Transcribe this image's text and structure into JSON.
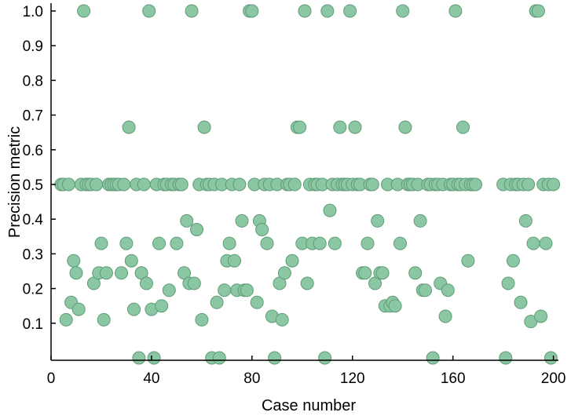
{
  "chart_data": {
    "type": "scatter",
    "title": "",
    "xlabel": "Case number",
    "ylabel": "Precision metric",
    "xlim": [
      0,
      202
    ],
    "ylim": [
      0,
      1.0
    ],
    "x_ticks": [
      0,
      40,
      80,
      120,
      160,
      200
    ],
    "y_ticks": [
      0.1,
      0.2,
      0.3,
      0.4,
      0.5,
      0.6,
      0.7,
      0.8,
      0.9,
      1.0
    ],
    "grid": false,
    "legend": "none",
    "marker_color": "#8cc7a3",
    "marker_edge_color": "#5f9c78",
    "series": [
      {
        "points": [
          [
            4,
            0.5
          ],
          [
            5,
            0.5
          ],
          [
            6,
            0.11
          ],
          [
            7,
            0.5
          ],
          [
            8,
            0.16
          ],
          [
            9,
            0.28
          ],
          [
            10,
            0.245
          ],
          [
            11,
            0.14
          ],
          [
            12,
            0.5
          ],
          [
            13,
            1.0
          ],
          [
            14,
            0.5
          ],
          [
            15,
            0.5
          ],
          [
            16,
            0.5
          ],
          [
            17,
            0.215
          ],
          [
            18,
            0.5
          ],
          [
            19,
            0.245
          ],
          [
            20,
            0.33
          ],
          [
            21,
            0.11
          ],
          [
            22,
            0.245
          ],
          [
            23,
            0.5
          ],
          [
            24,
            0.5
          ],
          [
            25,
            0.5
          ],
          [
            26,
            0.5
          ],
          [
            27,
            0.5
          ],
          [
            28,
            0.245
          ],
          [
            29,
            0.5
          ],
          [
            30,
            0.33
          ],
          [
            31,
            0.665
          ],
          [
            32,
            0.28
          ],
          [
            33,
            0.14
          ],
          [
            34,
            0.5
          ],
          [
            35,
            0.0
          ],
          [
            36,
            0.245
          ],
          [
            37,
            0.5
          ],
          [
            38,
            0.215
          ],
          [
            39,
            1.0
          ],
          [
            40,
            0.14
          ],
          [
            41,
            0.0
          ],
          [
            42,
            0.5
          ],
          [
            43,
            0.33
          ],
          [
            44,
            0.15
          ],
          [
            45,
            0.5
          ],
          [
            46,
            0.5
          ],
          [
            47,
            0.195
          ],
          [
            48,
            0.5
          ],
          [
            49,
            0.5
          ],
          [
            50,
            0.33
          ],
          [
            51,
            0.5
          ],
          [
            52,
            0.5
          ],
          [
            53,
            0.245
          ],
          [
            54,
            0.395
          ],
          [
            55,
            0.215
          ],
          [
            56,
            1.0
          ],
          [
            57,
            0.215
          ],
          [
            58,
            0.37
          ],
          [
            59,
            0.5
          ],
          [
            60,
            0.11
          ],
          [
            61,
            0.665
          ],
          [
            62,
            0.5
          ],
          [
            63,
            0.5
          ],
          [
            64,
            0.0
          ],
          [
            65,
            0.5
          ],
          [
            66,
            0.16
          ],
          [
            67,
            0.0
          ],
          [
            68,
            0.5
          ],
          [
            69,
            0.195
          ],
          [
            70,
            0.28
          ],
          [
            71,
            0.33
          ],
          [
            72,
            0.5
          ],
          [
            73,
            0.28
          ],
          [
            74,
            0.195
          ],
          [
            75,
            0.5
          ],
          [
            76,
            0.395
          ],
          [
            77,
            0.195
          ],
          [
            78,
            0.195
          ],
          [
            79,
            1.0
          ],
          [
            80,
            1.0
          ],
          [
            81,
            0.5
          ],
          [
            82,
            0.16
          ],
          [
            83,
            0.395
          ],
          [
            84,
            0.37
          ],
          [
            85,
            0.5
          ],
          [
            86,
            0.33
          ],
          [
            87,
            0.5
          ],
          [
            88,
            0.12
          ],
          [
            89,
            0.0
          ],
          [
            90,
            0.5
          ],
          [
            91,
            0.215
          ],
          [
            92,
            0.11
          ],
          [
            93,
            0.245
          ],
          [
            94,
            0.5
          ],
          [
            95,
            0.5
          ],
          [
            96,
            0.28
          ],
          [
            97,
            0.5
          ],
          [
            98,
            0.665
          ],
          [
            99,
            0.665
          ],
          [
            100,
            0.33
          ],
          [
            101,
            1.0
          ],
          [
            102,
            0.215
          ],
          [
            103,
            0.5
          ],
          [
            104,
            0.33
          ],
          [
            105,
            0.5
          ],
          [
            106,
            0.5
          ],
          [
            107,
            0.33
          ],
          [
            108,
            0.5
          ],
          [
            109,
            0.0
          ],
          [
            110,
            1.0
          ],
          [
            111,
            0.425
          ],
          [
            112,
            0.5
          ],
          [
            113,
            0.33
          ],
          [
            114,
            0.5
          ],
          [
            115,
            0.665
          ],
          [
            116,
            0.5
          ],
          [
            117,
            0.5
          ],
          [
            118,
            0.5
          ],
          [
            119,
            1.0
          ],
          [
            120,
            0.5
          ],
          [
            121,
            0.665
          ],
          [
            122,
            0.5
          ],
          [
            123,
            0.5
          ],
          [
            124,
            0.245
          ],
          [
            125,
            0.245
          ],
          [
            126,
            0.33
          ],
          [
            127,
            0.5
          ],
          [
            128,
            0.5
          ],
          [
            129,
            0.215
          ],
          [
            130,
            0.395
          ],
          [
            131,
            0.245
          ],
          [
            132,
            0.245
          ],
          [
            133,
            0.15
          ],
          [
            134,
            0.5
          ],
          [
            135,
            0.15
          ],
          [
            136,
            0.16
          ],
          [
            137,
            0.15
          ],
          [
            138,
            0.5
          ],
          [
            139,
            0.33
          ],
          [
            140,
            1.0
          ],
          [
            141,
            0.665
          ],
          [
            142,
            0.5
          ],
          [
            143,
            0.5
          ],
          [
            144,
            0.5
          ],
          [
            145,
            0.245
          ],
          [
            146,
            0.5
          ],
          [
            147,
            0.395
          ],
          [
            148,
            0.195
          ],
          [
            149,
            0.195
          ],
          [
            150,
            0.5
          ],
          [
            151,
            0.5
          ],
          [
            152,
            0.0
          ],
          [
            153,
            0.5
          ],
          [
            154,
            0.5
          ],
          [
            155,
            0.215
          ],
          [
            156,
            0.5
          ],
          [
            157,
            0.12
          ],
          [
            158,
            0.195
          ],
          [
            159,
            0.5
          ],
          [
            160,
            0.5
          ],
          [
            161,
            1.0
          ],
          [
            162,
            0.5
          ],
          [
            163,
            0.5
          ],
          [
            164,
            0.665
          ],
          [
            165,
            0.5
          ],
          [
            166,
            0.28
          ],
          [
            167,
            0.5
          ],
          [
            168,
            0.5
          ],
          [
            169,
            0.5
          ],
          [
            180,
            0.5
          ],
          [
            181,
            0.0
          ],
          [
            182,
            0.215
          ],
          [
            183,
            0.5
          ],
          [
            184,
            0.28
          ],
          [
            185,
            0.5
          ],
          [
            186,
            0.5
          ],
          [
            187,
            0.16
          ],
          [
            188,
            0.5
          ],
          [
            189,
            0.395
          ],
          [
            190,
            0.5
          ],
          [
            191,
            0.105
          ],
          [
            192,
            0.33
          ],
          [
            193,
            1.0
          ],
          [
            194,
            1.0
          ],
          [
            195,
            0.12
          ],
          [
            196,
            0.5
          ],
          [
            197,
            0.33
          ],
          [
            198,
            0.5
          ],
          [
            199,
            0.0
          ],
          [
            200,
            0.5
          ]
        ]
      }
    ]
  }
}
